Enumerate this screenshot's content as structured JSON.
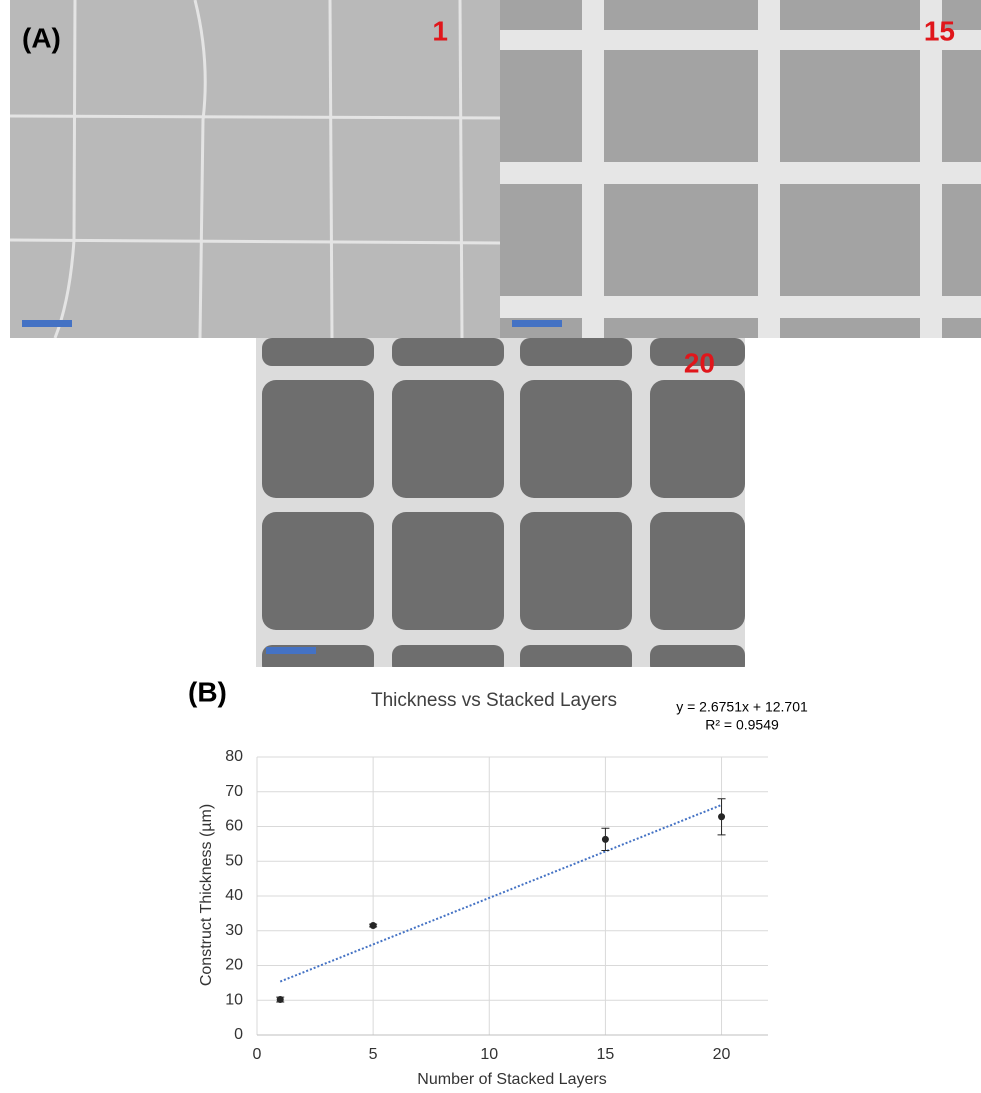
{
  "panels": {
    "a_label": "(A)",
    "b_label": "(B)",
    "images": [
      {
        "label": "1"
      },
      {
        "label": "15"
      },
      {
        "label": "20"
      }
    ]
  },
  "chart_data": {
    "type": "scatter",
    "title": "Thickness vs Stacked Layers",
    "x_label": "Number of Stacked Layers",
    "y_label": "Construct Thickness (µm)",
    "x": [
      1,
      5,
      15,
      20
    ],
    "values": [
      10.2,
      31.5,
      56.3,
      62.8
    ],
    "errors": [
      0.7,
      0.4,
      3.2,
      5.2
    ],
    "color": "#262626",
    "trendline": {
      "slope": 2.6751,
      "intercept": 12.701,
      "equation": "y = 2.6751x + 12.701",
      "r2_label": "R² = 0.9549",
      "color": "#4472c4"
    },
    "xlim": [
      0,
      22
    ],
    "xticks": [
      0,
      5,
      10,
      15,
      20
    ],
    "ylim": [
      0,
      80
    ],
    "yticks": [
      0,
      10,
      20,
      30,
      40,
      50,
      60,
      70,
      80
    ],
    "grid": true
  }
}
